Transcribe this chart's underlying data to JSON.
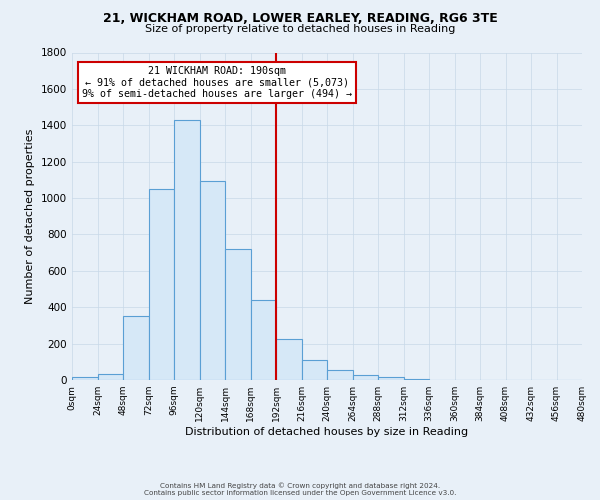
{
  "title1": "21, WICKHAM ROAD, LOWER EARLEY, READING, RG6 3TE",
  "title2": "Size of property relative to detached houses in Reading",
  "xlabel": "Distribution of detached houses by size in Reading",
  "ylabel": "Number of detached properties",
  "footer1": "Contains HM Land Registry data © Crown copyright and database right 2024.",
  "footer2": "Contains public sector information licensed under the Open Government Licence v3.0.",
  "bin_edges": [
    0,
    24,
    48,
    72,
    96,
    120,
    144,
    168,
    192,
    216,
    240,
    264,
    288,
    312,
    336,
    360,
    384,
    408,
    432,
    456,
    480
  ],
  "bin_values": [
    15,
    35,
    350,
    1050,
    1430,
    1095,
    720,
    440,
    225,
    110,
    55,
    25,
    15,
    5,
    0,
    0,
    0,
    0,
    0,
    0
  ],
  "bar_facecolor": "#d6e8f7",
  "bar_edgecolor": "#5a9fd4",
  "vline_x": 192,
  "vline_color": "#cc0000",
  "annotation_title": "21 WICKHAM ROAD: 190sqm",
  "annotation_line1": "← 91% of detached houses are smaller (5,073)",
  "annotation_line2": "9% of semi-detached houses are larger (494) →",
  "annotation_box_edgecolor": "#cc0000",
  "annotation_box_facecolor": "#ffffff",
  "xlim": [
    0,
    480
  ],
  "ylim": [
    0,
    1800
  ],
  "yticks": [
    0,
    200,
    400,
    600,
    800,
    1000,
    1200,
    1400,
    1600,
    1800
  ],
  "xtick_labels": [
    "0sqm",
    "24sqm",
    "48sqm",
    "72sqm",
    "96sqm",
    "120sqm",
    "144sqm",
    "168sqm",
    "192sqm",
    "216sqm",
    "240sqm",
    "264sqm",
    "288sqm",
    "312sqm",
    "336sqm",
    "360sqm",
    "384sqm",
    "408sqm",
    "432sqm",
    "456sqm",
    "480sqm"
  ],
  "grid_color": "#c8d8e8",
  "background_color": "#e8f0f8"
}
